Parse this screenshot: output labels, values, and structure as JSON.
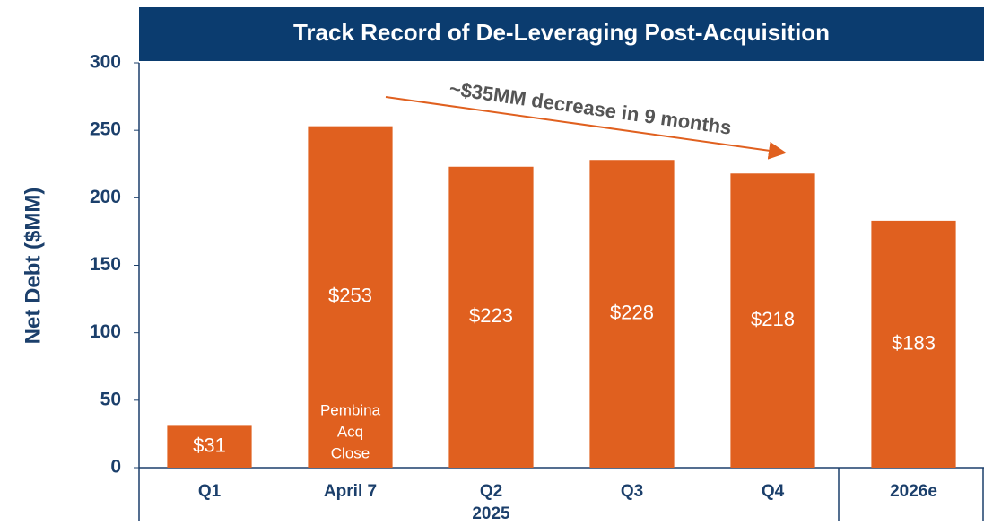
{
  "chart_data": {
    "type": "bar",
    "title": "Track Record of De-Leveraging Post-Acquisition",
    "y_label": "Net Debt ($MM)",
    "categories": [
      "Q1",
      "April 7",
      "Q2",
      "Q3",
      "Q4",
      "2026e"
    ],
    "group_label": "2025",
    "values": [
      31,
      253,
      223,
      228,
      218,
      183
    ],
    "value_labels": [
      "$31",
      "$253",
      "$223",
      "$228",
      "$218",
      "$183"
    ],
    "color": "#e0601f",
    "ylim": [
      0,
      300
    ],
    "yticks": [
      0,
      50,
      100,
      150,
      200,
      250,
      300
    ],
    "grid": false,
    "bar_annotation": [
      "Pembina",
      "Acq",
      "Close"
    ],
    "trend_annotation": "~$35MM decrease in 9 months"
  }
}
